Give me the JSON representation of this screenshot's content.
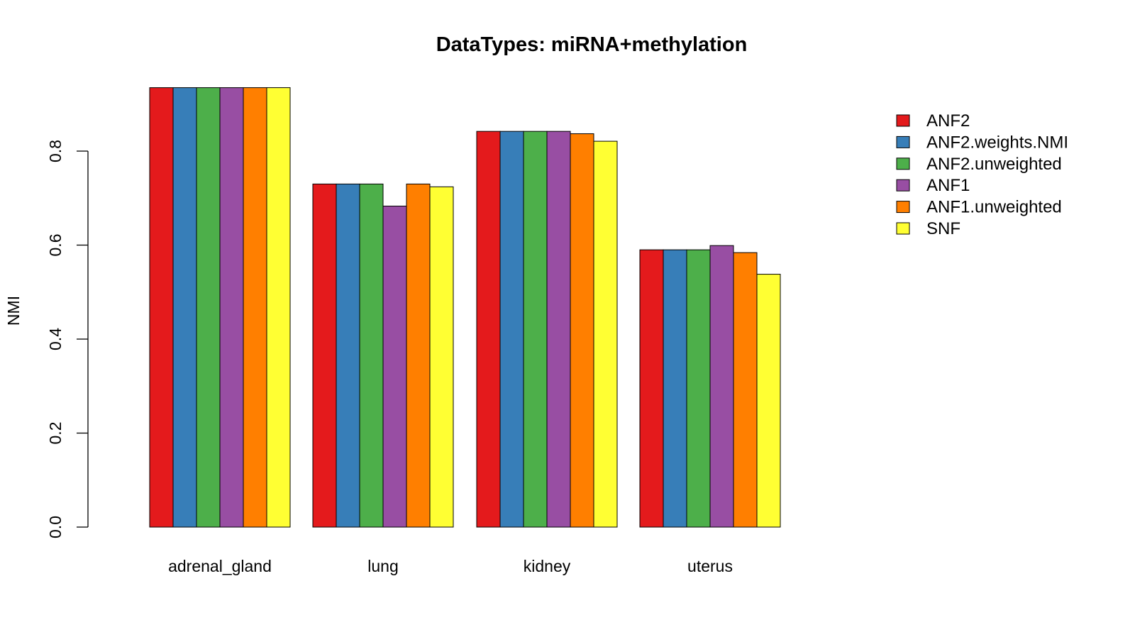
{
  "chart_data": {
    "type": "bar",
    "title": "DataTypes: miRNA+methylation",
    "xlabel": "",
    "ylabel": "NMI",
    "ylim": [
      0,
      0.95
    ],
    "yticks": [
      "0.0",
      "0.2",
      "0.4",
      "0.6",
      "0.8"
    ],
    "grid": false,
    "legend_position": "top-right",
    "categories": [
      "adrenal_gland",
      "lung",
      "kidney",
      "uterus"
    ],
    "series": [
      {
        "name": "ANF2",
        "color": "#E41A1C",
        "values": [
          0.935,
          0.73,
          0.842,
          0.59
        ]
      },
      {
        "name": "ANF2.weights.NMI",
        "color": "#377EB8",
        "values": [
          0.935,
          0.73,
          0.842,
          0.59
        ]
      },
      {
        "name": "ANF2.unweighted",
        "color": "#4DAF4A",
        "values": [
          0.935,
          0.73,
          0.842,
          0.59
        ]
      },
      {
        "name": "ANF1",
        "color": "#984EA3",
        "values": [
          0.935,
          0.683,
          0.842,
          0.599
        ]
      },
      {
        "name": "ANF1.unweighted",
        "color": "#FF7F00",
        "values": [
          0.935,
          0.73,
          0.837,
          0.584
        ]
      },
      {
        "name": "SNF",
        "color": "#FFFF33",
        "values": [
          0.935,
          0.724,
          0.821,
          0.538
        ]
      }
    ]
  }
}
